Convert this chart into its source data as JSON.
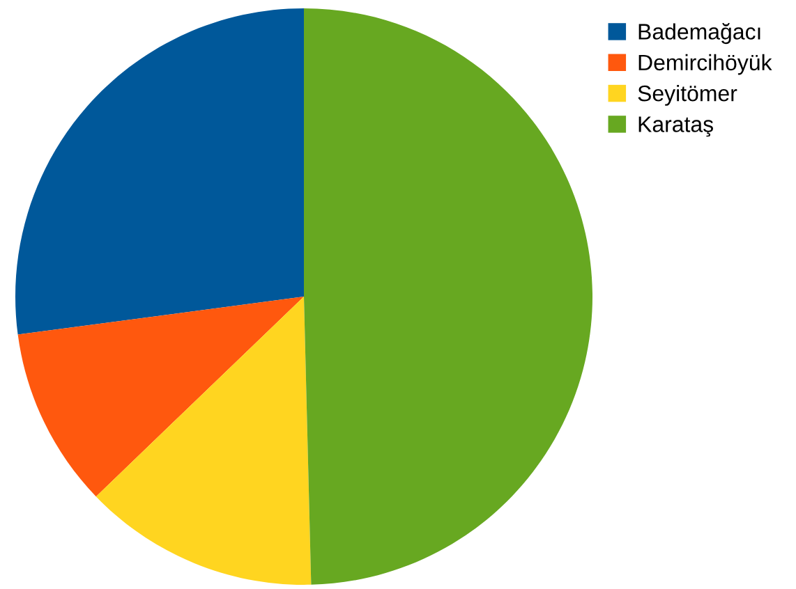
{
  "chart_data": {
    "type": "pie",
    "categories": [
      "Bademağacı",
      "Demircihöyük",
      "Seyitömer",
      "Karataş"
    ],
    "values": [
      27.1,
      10.1,
      13.2,
      49.6
    ],
    "colors": [
      "#00589a",
      "#ff580e",
      "#ffd520",
      "#67a821"
    ],
    "legend": "top right"
  }
}
